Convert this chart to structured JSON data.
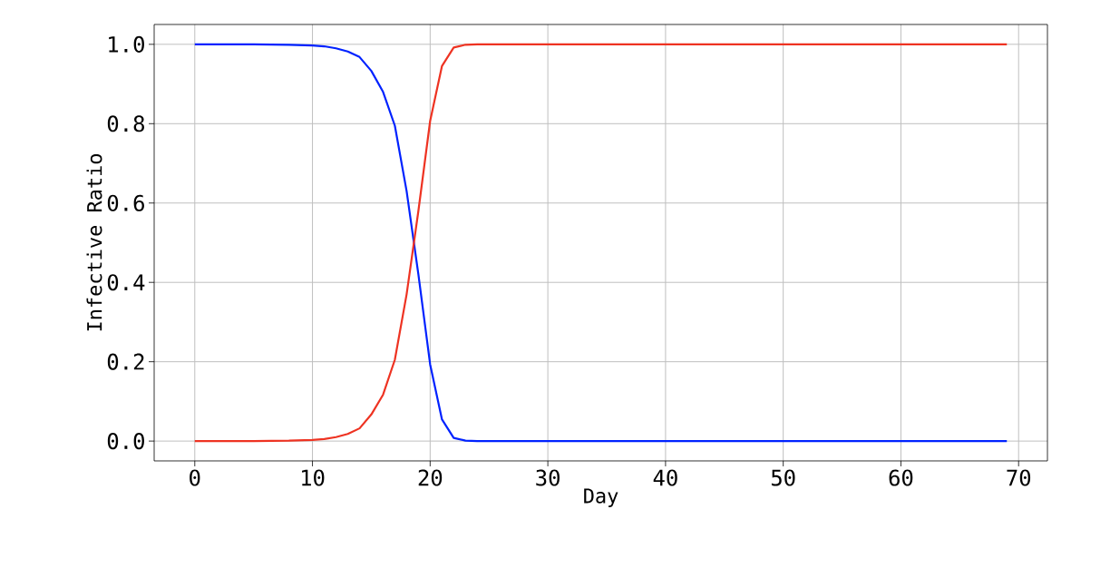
{
  "chart_data": {
    "type": "line",
    "xlabel": "Day",
    "ylabel": "Infective Ratio",
    "xlim": [
      -3.45,
      72.45
    ],
    "ylim": [
      -0.05,
      1.05
    ],
    "xticks": [
      0,
      10,
      20,
      30,
      40,
      50,
      60,
      70
    ],
    "yticks": [
      {
        "value": 0,
        "label": "0.0"
      },
      {
        "value": 0.2,
        "label": "0.2"
      },
      {
        "value": 0.4,
        "label": "0.4"
      },
      {
        "value": 0.6,
        "label": "0.6"
      },
      {
        "value": 0.8,
        "label": "0.8"
      },
      {
        "value": 1,
        "label": "1.0"
      }
    ],
    "grid": true,
    "marker": "none",
    "line_style": "solid",
    "series": [
      {
        "color": "#0022ff",
        "x": [
          0,
          5,
          8,
          10,
          11,
          12,
          13,
          14,
          15,
          16,
          17,
          18,
          19,
          20,
          21,
          22,
          23,
          24,
          30,
          40,
          50,
          60,
          69
        ],
        "values": [
          1,
          1,
          0.999,
          0.997,
          0.995,
          0.99,
          0.982,
          0.968,
          0.933,
          0.88,
          0.795,
          0.63,
          0.42,
          0.193,
          0.055,
          0.008,
          0.001,
          0,
          0,
          0,
          0,
          0,
          0
        ]
      },
      {
        "color": "#ee3322",
        "x": [
          0,
          5,
          8,
          10,
          11,
          12,
          13,
          14,
          15,
          16,
          17,
          18,
          19,
          20,
          21,
          22,
          23,
          24,
          30,
          40,
          50,
          60,
          69
        ],
        "values": [
          0,
          0,
          0.001,
          0.003,
          0.005,
          0.01,
          0.018,
          0.032,
          0.067,
          0.117,
          0.205,
          0.37,
          0.58,
          0.807,
          0.945,
          0.992,
          0.999,
          1,
          1,
          1,
          1,
          1,
          1
        ]
      }
    ]
  }
}
